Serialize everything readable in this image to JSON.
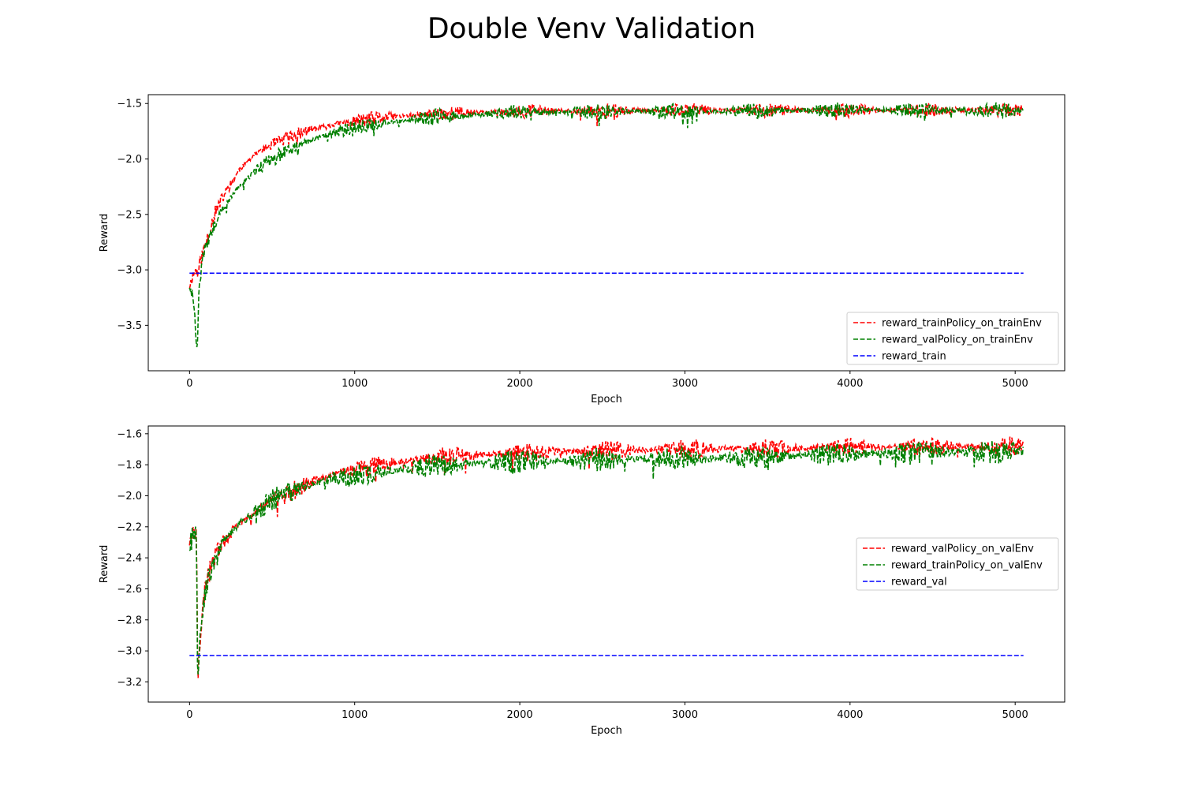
{
  "figure": {
    "title": "Double Venv Validation"
  },
  "chart_data": [
    {
      "type": "line",
      "title": "",
      "xlabel": "Epoch",
      "ylabel": "Reward",
      "xlim": [
        -250,
        5300
      ],
      "ylim": [
        -3.91,
        -1.42
      ],
      "xticks": [
        0,
        1000,
        2000,
        3000,
        4000,
        5000
      ],
      "xtick_labels": [
        "0",
        "1000",
        "2000",
        "3000",
        "4000",
        "5000"
      ],
      "yticks": [
        -3.5,
        -3.0,
        -2.5,
        -2.0,
        -1.5
      ],
      "ytick_labels": [
        "−3.5",
        "−3.0",
        "−2.5",
        "−2.0",
        "−1.5"
      ],
      "grid": false,
      "legend_position": "lower-right",
      "noise_seed": 11,
      "series": [
        {
          "name": "reward_trainPolicy_on_trainEnv",
          "color": "#ff0000",
          "linestyle": "dashed",
          "x": [
            0,
            20,
            40,
            50,
            60,
            80,
            100,
            150,
            200,
            300,
            400,
            500,
            700,
            900,
            1200,
            1500,
            2000,
            3000,
            4000,
            5050
          ],
          "y": [
            -3.15,
            -3.05,
            -3.0,
            -3.05,
            -2.95,
            -2.85,
            -2.75,
            -2.5,
            -2.35,
            -2.1,
            -1.95,
            -1.87,
            -1.75,
            -1.68,
            -1.62,
            -1.59,
            -1.57,
            -1.56,
            -1.56,
            -1.56
          ],
          "noise_amplitude": 0.04
        },
        {
          "name": "reward_valPolicy_on_trainEnv",
          "color": "#008000",
          "linestyle": "dashed",
          "x": [
            0,
            20,
            30,
            40,
            45,
            50,
            60,
            80,
            100,
            150,
            200,
            300,
            400,
            500,
            700,
            900,
            1200,
            1500,
            2000,
            3000,
            4000,
            5050
          ],
          "y": [
            -3.2,
            -3.25,
            -3.4,
            -3.6,
            -3.8,
            -3.5,
            -3.1,
            -2.9,
            -2.8,
            -2.6,
            -2.45,
            -2.25,
            -2.1,
            -2.0,
            -1.85,
            -1.75,
            -1.67,
            -1.62,
            -1.58,
            -1.57,
            -1.56,
            -1.56
          ],
          "noise_amplitude": 0.045
        },
        {
          "name": "reward_train",
          "color": "#0000ff",
          "linestyle": "dashed",
          "x": [
            0,
            5050
          ],
          "y": [
            -3.03,
            -3.03
          ],
          "noise_amplitude": 0
        }
      ]
    },
    {
      "type": "line",
      "title": "",
      "xlabel": "Epoch",
      "ylabel": "Reward",
      "xlim": [
        -250,
        5300
      ],
      "ylim": [
        -3.33,
        -1.55
      ],
      "xticks": [
        0,
        1000,
        2000,
        3000,
        4000,
        5000
      ],
      "xtick_labels": [
        "0",
        "1000",
        "2000",
        "3000",
        "4000",
        "5000"
      ],
      "yticks": [
        -3.2,
        -3.0,
        -2.8,
        -2.6,
        -2.4,
        -2.2,
        -2.0,
        -1.8,
        -1.6
      ],
      "ytick_labels": [
        "−3.2",
        "−3.0",
        "−2.8",
        "−2.6",
        "−2.4",
        "−2.2",
        "−2.0",
        "−1.8",
        "−1.6"
      ],
      "grid": false,
      "legend_position": "center-right",
      "noise_seed": 29,
      "series": [
        {
          "name": "reward_valPolicy_on_valEnv",
          "color": "#ff0000",
          "linestyle": "dashed",
          "x": [
            0,
            20,
            40,
            45,
            50,
            60,
            80,
            100,
            150,
            200,
            300,
            400,
            500,
            700,
            900,
            1200,
            1500,
            2000,
            3000,
            4000,
            5050
          ],
          "y": [
            -2.3,
            -2.25,
            -2.22,
            -2.6,
            -3.2,
            -3.0,
            -2.75,
            -2.55,
            -2.4,
            -2.3,
            -2.18,
            -2.1,
            -2.03,
            -1.93,
            -1.85,
            -1.79,
            -1.75,
            -1.72,
            -1.7,
            -1.69,
            -1.68
          ],
          "noise_amplitude": 0.04
        },
        {
          "name": "reward_trainPolicy_on_valEnv",
          "color": "#008000",
          "linestyle": "dashed",
          "x": [
            0,
            20,
            40,
            45,
            50,
            60,
            80,
            100,
            150,
            200,
            300,
            400,
            500,
            700,
            900,
            1200,
            1500,
            2000,
            2500,
            3000,
            3500,
            4000,
            5050
          ],
          "y": [
            -2.3,
            -2.26,
            -2.24,
            -2.7,
            -3.22,
            -3.0,
            -2.78,
            -2.58,
            -2.42,
            -2.3,
            -2.18,
            -2.1,
            -2.03,
            -1.94,
            -1.88,
            -1.84,
            -1.8,
            -1.78,
            -1.77,
            -1.76,
            -1.75,
            -1.73,
            -1.71
          ],
          "noise_amplitude": 0.05
        },
        {
          "name": "reward_val",
          "color": "#0000ff",
          "linestyle": "dashed",
          "x": [
            0,
            5050
          ],
          "y": [
            -3.03,
            -3.03
          ],
          "noise_amplitude": 0
        }
      ]
    }
  ]
}
